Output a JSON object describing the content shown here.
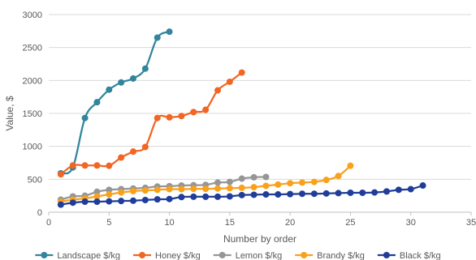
{
  "chart_data": {
    "type": "line",
    "title": "",
    "xlabel": "Number by order",
    "ylabel": "Value, $",
    "xlim": [
      0,
      35
    ],
    "ylim": [
      0,
      3000
    ],
    "x_ticks": [
      0,
      5,
      10,
      15,
      20,
      25,
      30,
      35
    ],
    "y_ticks": [
      0,
      500,
      1000,
      1500,
      2000,
      2500,
      3000
    ],
    "grid": "horizontal",
    "legend_position": "bottom",
    "series": [
      {
        "name": "Landscape $/kg",
        "color": "#31859c",
        "x": [
          1,
          2,
          3,
          4,
          5,
          6,
          7,
          8,
          9,
          10
        ],
        "y": [
          590,
          680,
          1430,
          1670,
          1860,
          1970,
          2030,
          2180,
          2650,
          2740
        ]
      },
      {
        "name": "Honey $/kg",
        "color": "#f26522",
        "x": [
          1,
          2,
          3,
          4,
          5,
          6,
          7,
          8,
          9,
          10,
          11,
          12,
          13,
          14,
          15,
          16
        ],
        "y": [
          575,
          710,
          710,
          710,
          705,
          830,
          920,
          990,
          1430,
          1440,
          1460,
          1520,
          1555,
          1850,
          1980,
          2120
        ]
      },
      {
        "name": "Lemon $/kg",
        "color": "#969696",
        "x": [
          1,
          2,
          3,
          4,
          5,
          6,
          7,
          8,
          9,
          10,
          11,
          12,
          13,
          14,
          15,
          16,
          17,
          18
        ],
        "y": [
          190,
          240,
          250,
          310,
          340,
          350,
          360,
          370,
          390,
          395,
          405,
          410,
          415,
          450,
          460,
          510,
          530,
          535
        ]
      },
      {
        "name": "Brandy $/kg",
        "color": "#f9a11b",
        "x": [
          1,
          2,
          3,
          4,
          5,
          6,
          7,
          8,
          9,
          10,
          11,
          12,
          13,
          14,
          15,
          16,
          17,
          18,
          19,
          20,
          21,
          22,
          23,
          24,
          25
        ],
        "y": [
          160,
          190,
          210,
          240,
          270,
          300,
          320,
          330,
          340,
          350,
          350,
          355,
          355,
          360,
          365,
          370,
          380,
          400,
          420,
          440,
          450,
          460,
          490,
          550,
          705
        ]
      },
      {
        "name": "Black $/kg",
        "color": "#1f3d99",
        "x": [
          1,
          2,
          3,
          4,
          5,
          6,
          7,
          8,
          9,
          10,
          11,
          12,
          13,
          14,
          15,
          16,
          17,
          18,
          19,
          20,
          21,
          22,
          23,
          24,
          25,
          26,
          27,
          28,
          29,
          30,
          31
        ],
        "y": [
          115,
          145,
          160,
          160,
          165,
          170,
          175,
          185,
          195,
          200,
          230,
          235,
          235,
          235,
          240,
          260,
          265,
          270,
          270,
          275,
          280,
          280,
          285,
          290,
          295,
          295,
          300,
          315,
          340,
          350,
          405
        ]
      }
    ]
  }
}
